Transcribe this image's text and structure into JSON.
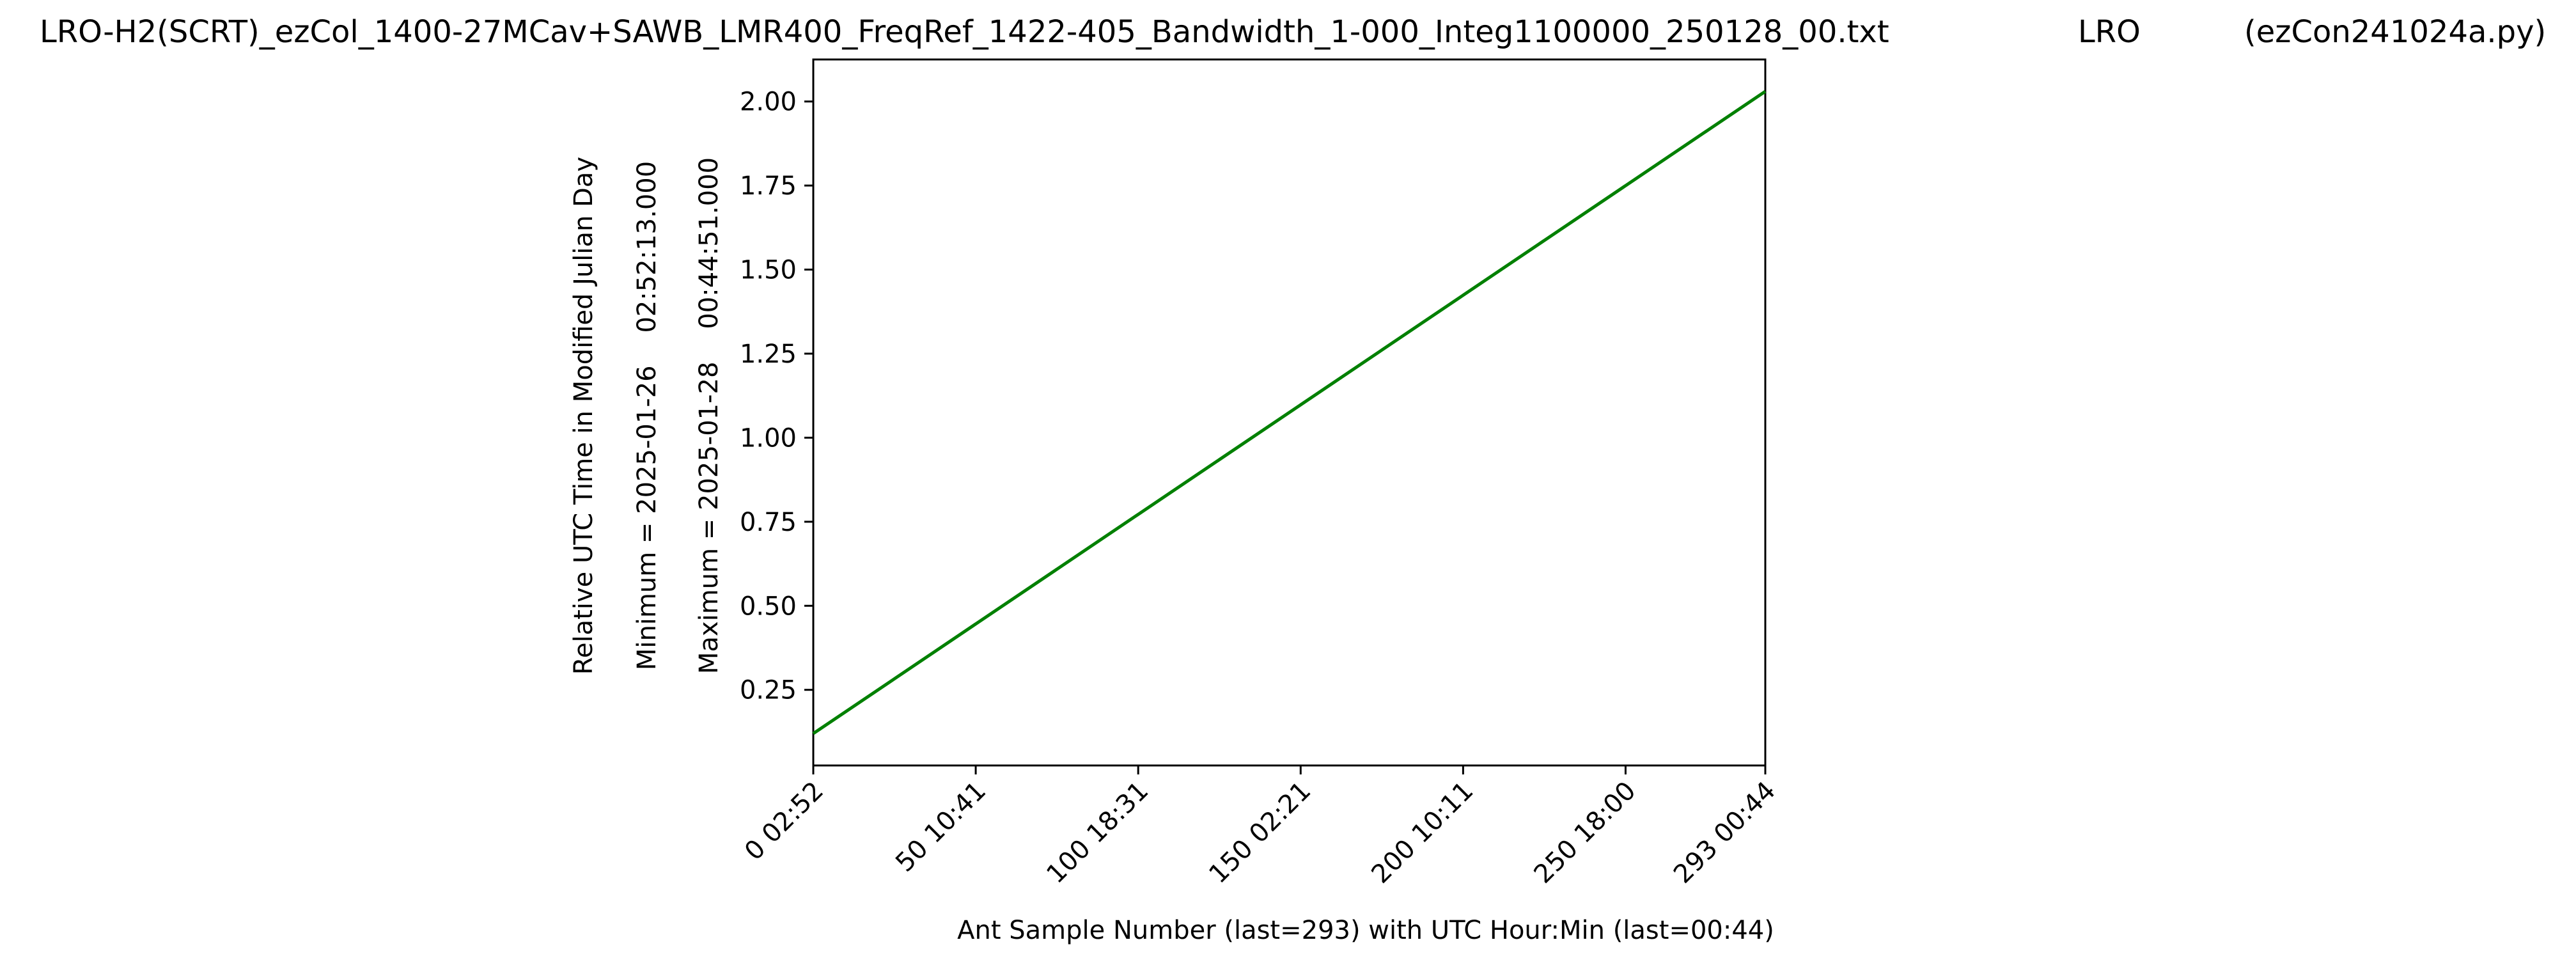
{
  "figure": {
    "title_file": "LRO-H2(SCRT)_ezCol_1400-27MCav+SAWB_LMR400_FreqRef_1422-405_Bandwidth_1-000_Integ1100000_250128_00.txt",
    "title_station": "LRO",
    "title_program": "(ezCon241024a.py)"
  },
  "chart_data": {
    "type": "line",
    "xlabel": "Ant Sample Number (last=293) with UTC Hour:Min (last=00:44)",
    "ylabels": [
      "Relative UTC Time in Modified Julian Day",
      "Minimum = 2025-01-26    02:52:13.000",
      "Maximum = 2025-01-28    00:44:51.000"
    ],
    "xlim": [
      0,
      293
    ],
    "ylim": [
      0.025,
      2.125
    ],
    "x_ticks": [
      {
        "value": 0,
        "label": "0  02:52"
      },
      {
        "value": 50,
        "label": "50  10:41"
      },
      {
        "value": 100,
        "label": "100  18:31"
      },
      {
        "value": 150,
        "label": "150  02:21"
      },
      {
        "value": 200,
        "label": "200  10:11"
      },
      {
        "value": 250,
        "label": "250  18:00"
      },
      {
        "value": 293,
        "label": "293  00:44"
      }
    ],
    "y_ticks": [
      {
        "value": 0.25,
        "label": "0.25"
      },
      {
        "value": 0.5,
        "label": "0.50"
      },
      {
        "value": 0.75,
        "label": "0.75"
      },
      {
        "value": 1.0,
        "label": "1.00"
      },
      {
        "value": 1.25,
        "label": "1.25"
      },
      {
        "value": 1.5,
        "label": "1.50"
      },
      {
        "value": 1.75,
        "label": "1.75"
      },
      {
        "value": 2.0,
        "label": "2.00"
      }
    ],
    "series": [
      {
        "color": "#008000",
        "x": [
          0,
          293
        ],
        "y": [
          0.12,
          2.03
        ]
      }
    ],
    "grid": false
  }
}
